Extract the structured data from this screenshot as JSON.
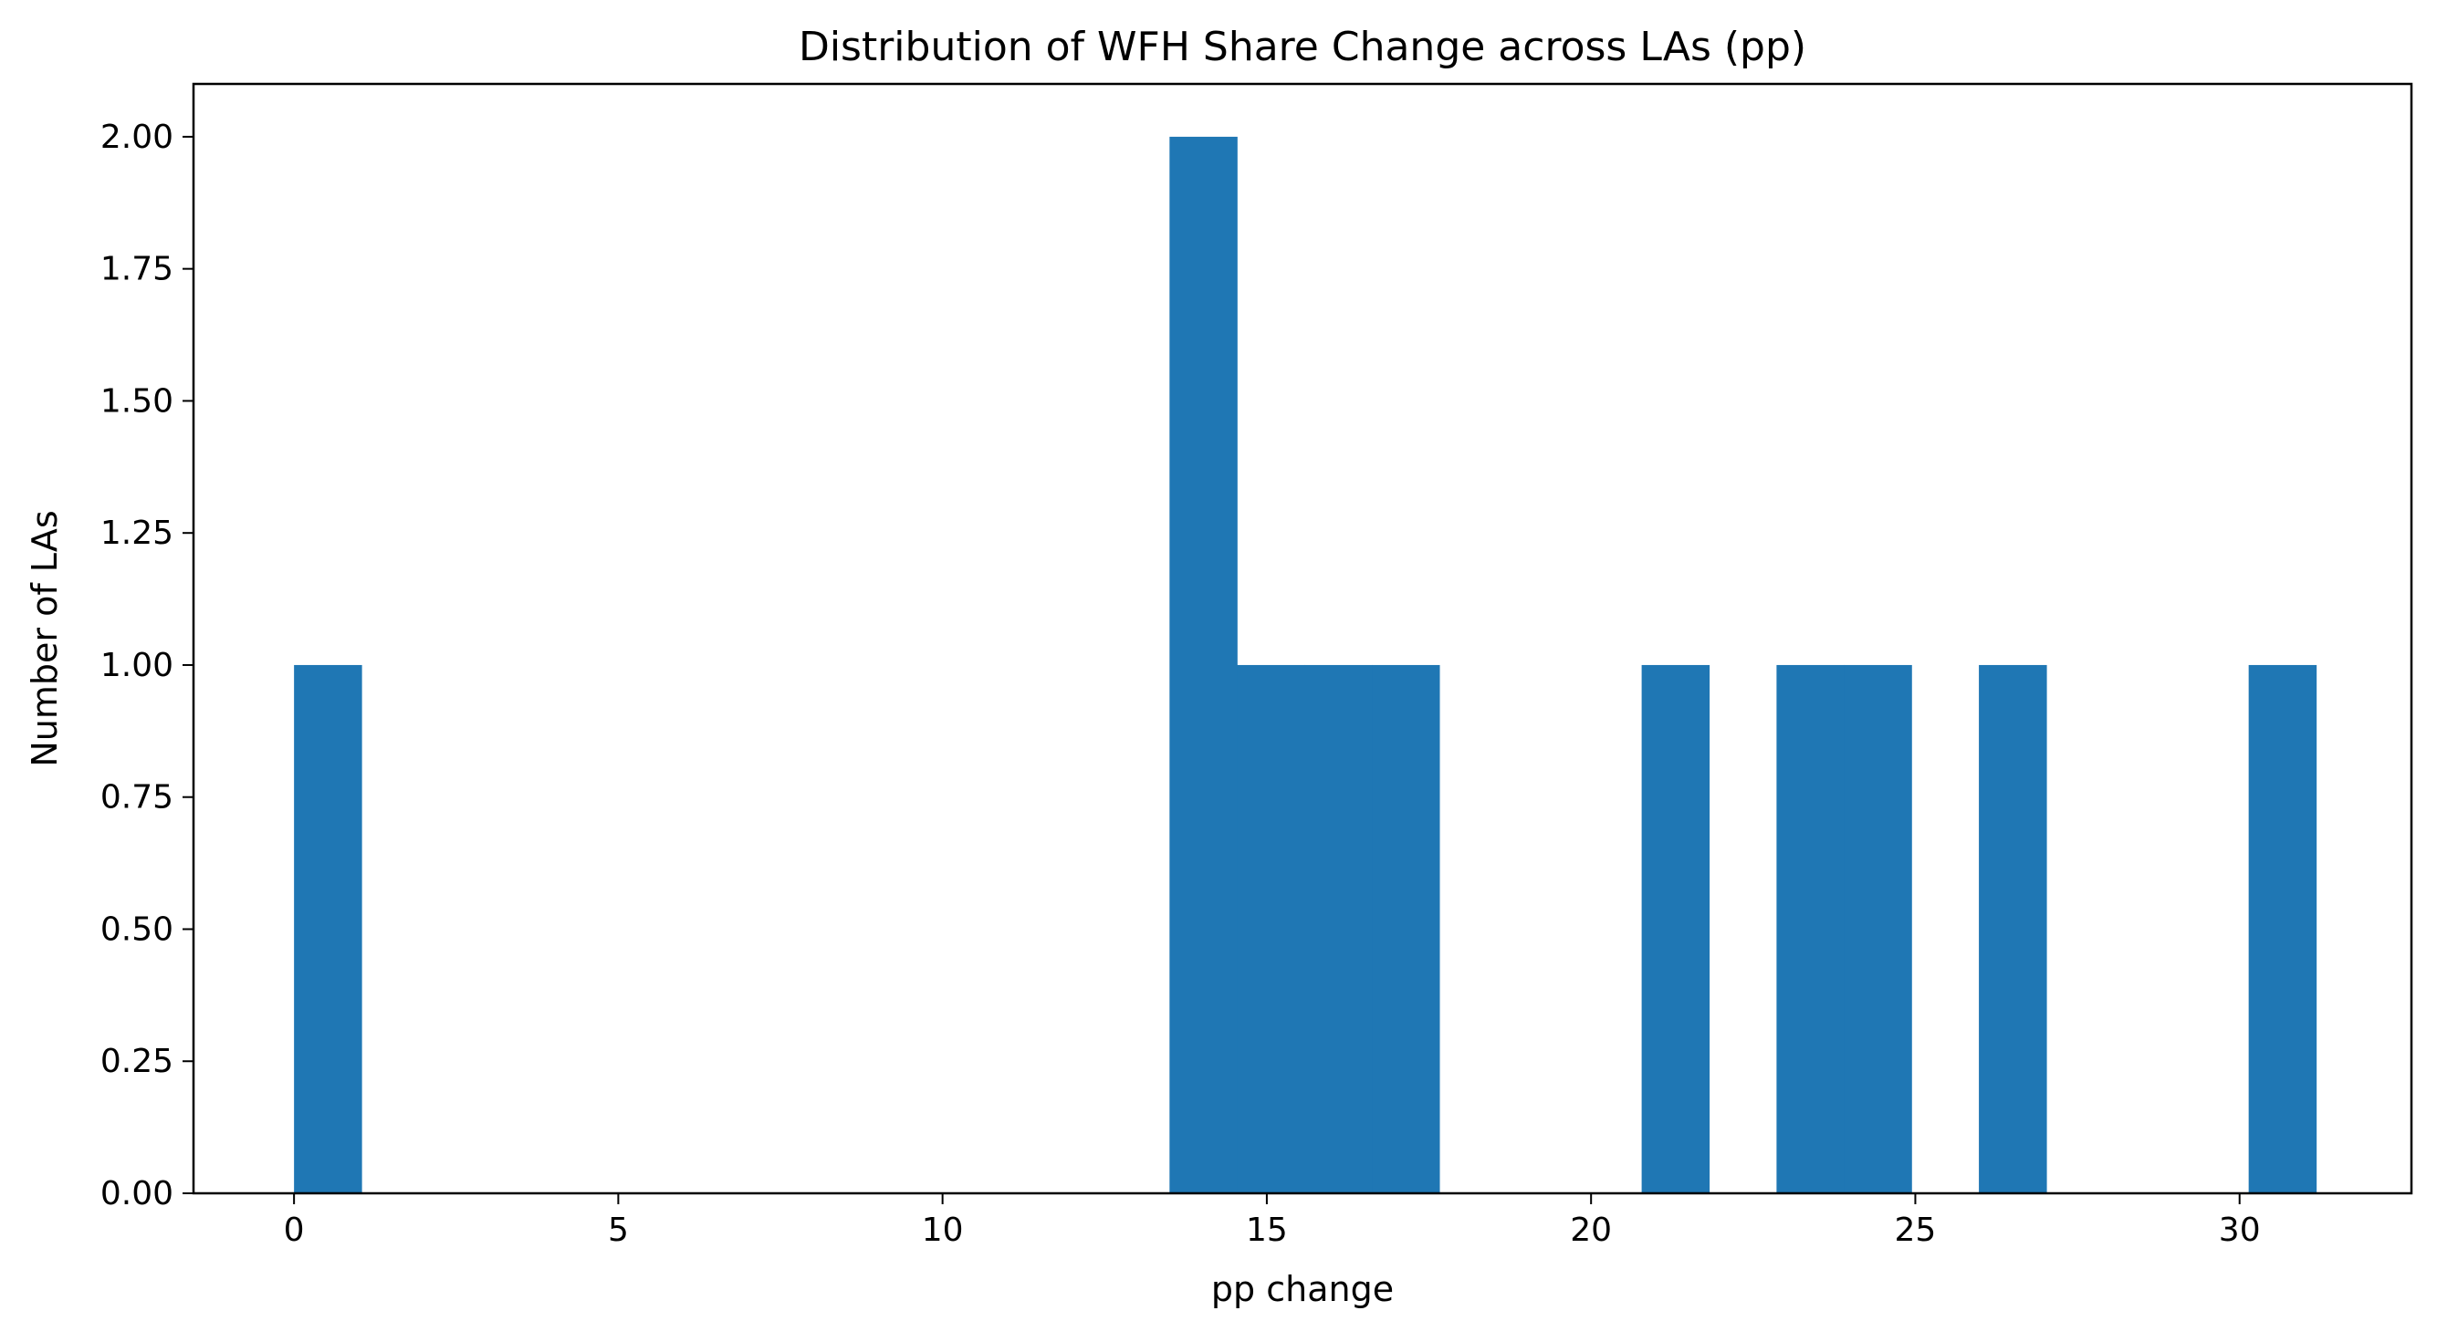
{
  "chart_data": {
    "type": "bar",
    "subtype": "histogram",
    "title": "Distribution of WFH Share Change across LAs (pp)",
    "xlabel": "pp change",
    "ylabel": "Number of LAs",
    "xlim": [
      -1.55,
      32.65
    ],
    "ylim": [
      0,
      2.1
    ],
    "xticks": [
      0,
      5,
      10,
      15,
      20,
      25,
      30
    ],
    "xtick_labels": [
      "0",
      "5",
      "10",
      "15",
      "20",
      "25",
      "30"
    ],
    "yticks": [
      0,
      0.25,
      0.5,
      0.75,
      1.0,
      1.25,
      1.5,
      1.75,
      2.0
    ],
    "ytick_labels": [
      "0.00",
      "0.25",
      "0.50",
      "0.75",
      "1.00",
      "1.25",
      "1.50",
      "1.75",
      "2.00"
    ],
    "grid": false,
    "bar_color": "#1f77b4",
    "bins": [
      {
        "x0": 0.0,
        "x1": 1.04,
        "count": 1
      },
      {
        "x0": 13.5,
        "x1": 14.54,
        "count": 2
      },
      {
        "x0": 14.54,
        "x1": 15.58,
        "count": 1
      },
      {
        "x0": 15.58,
        "x1": 16.62,
        "count": 1
      },
      {
        "x0": 16.62,
        "x1": 17.66,
        "count": 1
      },
      {
        "x0": 20.78,
        "x1": 21.82,
        "count": 1
      },
      {
        "x0": 22.86,
        "x1": 23.9,
        "count": 1
      },
      {
        "x0": 23.9,
        "x1": 24.94,
        "count": 1
      },
      {
        "x0": 25.98,
        "x1": 27.02,
        "count": 1
      },
      {
        "x0": 30.14,
        "x1": 31.18,
        "count": 1
      }
    ]
  }
}
